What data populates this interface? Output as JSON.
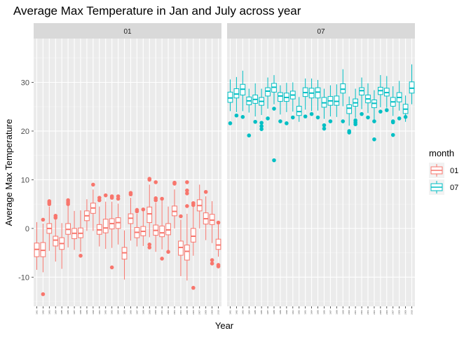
{
  "chart_data": {
    "type": "boxplot",
    "title": "Average Max Temperature in Jan and July across year",
    "xlabel": "Year",
    "ylabel": "Average Max Temperature",
    "ylim": [
      -16,
      39
    ],
    "yticks": [
      -10,
      0,
      10,
      20,
      30
    ],
    "grid": true,
    "facets": [
      "01",
      "07"
    ],
    "legend": {
      "title": "month",
      "position": "right",
      "entries": [
        {
          "label": "01",
          "color": "#F8766D"
        },
        {
          "label": "07",
          "color": "#00BFC4"
        }
      ]
    },
    "years": [
      "1981",
      "1982",
      "1983",
      "1984",
      "1985",
      "1986",
      "1987",
      "1988",
      "1989",
      "1990",
      "1991",
      "1992",
      "1993",
      "1994",
      "1995",
      "1996",
      "1997",
      "1998",
      "1999",
      "2000",
      "2001",
      "2002",
      "2003",
      "2004",
      "2005",
      "2006",
      "2007",
      "2008",
      "2009",
      "2010"
    ],
    "series": [
      {
        "facet": "01",
        "color": "#F8766D",
        "boxes": [
          {
            "year": "1981",
            "min": -8.5,
            "q1": -5.8,
            "median": -4.3,
            "q3": -3.0,
            "max": 1.3,
            "outliers": []
          },
          {
            "year": "1982",
            "min": -9.0,
            "q1": -5.8,
            "median": -4.5,
            "q3": -2.9,
            "max": 1.0,
            "outliers": [
              -13.5,
              1.8
            ]
          },
          {
            "year": "1983",
            "min": -4.6,
            "q1": -1.0,
            "median": 0.0,
            "q3": 1.0,
            "max": 4.5,
            "outliers": [
              5.0,
              5.3,
              5.6
            ]
          },
          {
            "year": "1984",
            "min": -6.8,
            "q1": -3.6,
            "median": -2.4,
            "q3": -1.6,
            "max": 1.8,
            "outliers": [
              2.2,
              2.6
            ]
          },
          {
            "year": "1985",
            "min": -8.3,
            "q1": -4.3,
            "median": -3.1,
            "q3": -1.9,
            "max": 1.1,
            "outliers": []
          },
          {
            "year": "1986",
            "min": -3.9,
            "q1": -1.2,
            "median": -0.2,
            "q3": 1.0,
            "max": 4.6,
            "outliers": [
              5.0,
              5.4,
              5.8
            ]
          },
          {
            "year": "1987",
            "min": -4.4,
            "q1": -2.1,
            "median": -1.0,
            "q3": 0.0,
            "max": 3.6,
            "outliers": []
          },
          {
            "year": "1988",
            "min": -4.8,
            "q1": -1.9,
            "median": -1.0,
            "q3": 0.1,
            "max": 3.7,
            "outliers": [
              -5.6
            ]
          },
          {
            "year": "1989",
            "min": -0.5,
            "q1": 1.6,
            "median": 2.6,
            "q3": 3.6,
            "max": 6.0,
            "outliers": []
          },
          {
            "year": "1990",
            "min": -0.5,
            "q1": 3.1,
            "median": 4.2,
            "q3": 5.2,
            "max": 8.0,
            "outliers": [
              9.0
            ]
          },
          {
            "year": "1991",
            "min": -3.7,
            "q1": -1.2,
            "median": -0.3,
            "q3": 0.8,
            "max": 4.5,
            "outliers": [
              5.8,
              6.3
            ]
          },
          {
            "year": "1992",
            "min": -4.2,
            "q1": -0.9,
            "median": 0.1,
            "q3": 1.9,
            "max": 5.5,
            "outliers": [
              6.8
            ]
          },
          {
            "year": "1993",
            "min": -4.0,
            "q1": -0.1,
            "median": 1.0,
            "q3": 2.0,
            "max": 5.5,
            "outliers": [
              -8.0,
              6.3,
              6.6
            ]
          },
          {
            "year": "1994",
            "min": -3.3,
            "q1": 0.0,
            "median": 1.2,
            "q3": 2.2,
            "max": 5.1,
            "outliers": [
              6.1,
              6.6
            ]
          },
          {
            "year": "1995",
            "min": -10.5,
            "q1": -6.3,
            "median": -5.0,
            "q3": -3.9,
            "max": -0.4,
            "outliers": []
          },
          {
            "year": "1996",
            "min": -2.5,
            "q1": 1.0,
            "median": 2.1,
            "q3": 3.0,
            "max": 6.3,
            "outliers": [
              7.0,
              7.3
            ]
          },
          {
            "year": "1997",
            "min": -3.7,
            "q1": -1.9,
            "median": -0.8,
            "q3": 0.2,
            "max": 3.0,
            "outliers": [
              3.5,
              3.8
            ]
          },
          {
            "year": "1998",
            "min": -3.6,
            "q1": -1.5,
            "median": -0.6,
            "q3": 0.4,
            "max": 3.5,
            "outliers": [
              3.9
            ]
          },
          {
            "year": "1999",
            "min": -1.8,
            "q1": 1.2,
            "median": 3.0,
            "q3": 4.4,
            "max": 9.0,
            "outliers": [
              -3.9,
              -3.3,
              10.2,
              10.0
            ]
          },
          {
            "year": "2000",
            "min": -4.8,
            "q1": -1.4,
            "median": -0.4,
            "q3": 0.7,
            "max": 5.3,
            "outliers": [
              5.8,
              6.2,
              9.5
            ]
          },
          {
            "year": "2001",
            "min": -4.3,
            "q1": -1.7,
            "median": -0.9,
            "q3": 0.5,
            "max": 5.7,
            "outliers": [
              -6.2,
              6.1
            ]
          },
          {
            "year": "2002",
            "min": -5.0,
            "q1": -1.3,
            "median": -0.3,
            "q3": 1.0,
            "max": 4.5,
            "outliers": [
              -4.8
            ]
          },
          {
            "year": "2003",
            "min": 0.0,
            "q1": 2.6,
            "median": 3.5,
            "q3": 4.6,
            "max": 8.0,
            "outliers": [
              9.2,
              9.4
            ]
          },
          {
            "year": "2004",
            "min": -9.8,
            "q1": -5.5,
            "median": -3.9,
            "q3": -2.6,
            "max": 1.8,
            "outliers": [
              2.5
            ]
          },
          {
            "year": "2005",
            "min": -10.7,
            "q1": -6.5,
            "median": -4.7,
            "q3": -3.4,
            "max": 3.0,
            "outliers": [
              4.6,
              7.2,
              7.8,
              9.5
            ]
          },
          {
            "year": "2006",
            "min": -5.6,
            "q1": -2.8,
            "median": -1.6,
            "q3": 0.0,
            "max": 4.4,
            "outliers": [
              -12.2,
              4.8,
              5.2
            ]
          },
          {
            "year": "2007",
            "min": 0.0,
            "q1": 3.6,
            "median": 4.7,
            "q3": 5.9,
            "max": 9.0,
            "outliers": []
          },
          {
            "year": "2008",
            "min": -2.4,
            "q1": 0.9,
            "median": 2.0,
            "q3": 3.2,
            "max": 6.6,
            "outliers": [
              7.5
            ]
          },
          {
            "year": "2009",
            "min": -3.0,
            "q1": 0.8,
            "median": 1.7,
            "q3": 2.9,
            "max": 5.6,
            "outliers": [
              -6.5,
              -7.2
            ]
          },
          {
            "year": "2010",
            "min": -5.8,
            "q1": -4.3,
            "median": -3.4,
            "q3": -2.2,
            "max": 0.8,
            "outliers": [
              1.2,
              -7.5,
              -7.8
            ]
          }
        ]
      },
      {
        "facet": "07",
        "color": "#00BFC4",
        "boxes": [
          {
            "year": "1981",
            "min": 24.1,
            "q1": 25.9,
            "median": 26.8,
            "q3": 28.0,
            "max": 30.6,
            "outliers": [
              21.6
            ]
          },
          {
            "year": "1982",
            "min": 23.9,
            "q1": 26.8,
            "median": 27.6,
            "q3": 28.7,
            "max": 31.1,
            "outliers": [
              23.2
            ]
          },
          {
            "year": "1983",
            "min": 24.1,
            "q1": 27.4,
            "median": 28.6,
            "q3": 29.6,
            "max": 32.4,
            "outliers": [
              22.9
            ]
          },
          {
            "year": "1984",
            "min": 23.8,
            "q1": 25.4,
            "median": 26.2,
            "q3": 27.0,
            "max": 28.7,
            "outliers": [
              19.1
            ]
          },
          {
            "year": "1985",
            "min": 23.0,
            "q1": 25.7,
            "median": 26.5,
            "q3": 27.4,
            "max": 29.8,
            "outliers": [
              21.9
            ]
          },
          {
            "year": "1986",
            "min": 23.3,
            "q1": 25.3,
            "median": 26.1,
            "q3": 26.9,
            "max": 28.7,
            "outliers": [
              21.7,
              21.0,
              20.4
            ]
          },
          {
            "year": "1987",
            "min": 24.6,
            "q1": 27.2,
            "median": 28.2,
            "q3": 28.9,
            "max": 31.0,
            "outliers": [
              22.6
            ]
          },
          {
            "year": "1988",
            "min": 25.5,
            "q1": 28.0,
            "median": 29.0,
            "q3": 29.8,
            "max": 31.5,
            "outliers": [
              24.6,
              14.0
            ]
          },
          {
            "year": "1989",
            "min": 23.4,
            "q1": 26.1,
            "median": 27.2,
            "q3": 27.9,
            "max": 29.4,
            "outliers": [
              22.0
            ]
          },
          {
            "year": "1990",
            "min": 23.9,
            "q1": 26.1,
            "median": 26.9,
            "q3": 27.8,
            "max": 29.9,
            "outliers": [
              21.6
            ]
          },
          {
            "year": "1991",
            "min": 24.0,
            "q1": 26.6,
            "median": 27.4,
            "q3": 28.2,
            "max": 30.0,
            "outliers": [
              22.8
            ]
          },
          {
            "year": "1992",
            "min": 21.9,
            "q1": 23.2,
            "median": 24.0,
            "q3": 25.1,
            "max": 27.0,
            "outliers": []
          },
          {
            "year": "1993",
            "min": 24.4,
            "q1": 27.1,
            "median": 27.9,
            "q3": 28.9,
            "max": 30.8,
            "outliers": [
              23.0
            ]
          },
          {
            "year": "1994",
            "min": 24.1,
            "q1": 26.8,
            "median": 27.8,
            "q3": 28.8,
            "max": 30.8,
            "outliers": [
              23.5
            ]
          },
          {
            "year": "1995",
            "min": 24.2,
            "q1": 26.8,
            "median": 28.0,
            "q3": 28.9,
            "max": 30.5,
            "outliers": [
              22.8
            ]
          },
          {
            "year": "1996",
            "min": 22.5,
            "q1": 24.9,
            "median": 25.8,
            "q3": 26.9,
            "max": 28.7,
            "outliers": [
              21.2,
              20.5
            ]
          },
          {
            "year": "1997",
            "min": 23.0,
            "q1": 25.3,
            "median": 26.2,
            "q3": 27.1,
            "max": 29.4,
            "outliers": [
              22.0
            ]
          },
          {
            "year": "1998",
            "min": 22.9,
            "q1": 25.3,
            "median": 26.1,
            "q3": 27.2,
            "max": 29.6,
            "outliers": []
          },
          {
            "year": "1999",
            "min": 25.1,
            "q1": 27.8,
            "median": 28.6,
            "q3": 29.7,
            "max": 32.7,
            "outliers": [
              22.0
            ]
          },
          {
            "year": "2000",
            "min": 21.1,
            "q1": 23.6,
            "median": 24.7,
            "q3": 25.4,
            "max": 27.1,
            "outliers": [
              20.0,
              19.7
            ]
          },
          {
            "year": "2001",
            "min": 22.7,
            "q1": 25.1,
            "median": 25.8,
            "q3": 26.6,
            "max": 28.7,
            "outliers": [
              22.2,
              21.8,
              21.4
            ]
          },
          {
            "year": "2002",
            "min": 24.5,
            "q1": 27.4,
            "median": 28.3,
            "q3": 28.9,
            "max": 31.0,
            "outliers": [
              23.5
            ]
          },
          {
            "year": "2003",
            "min": 23.7,
            "q1": 25.8,
            "median": 26.6,
            "q3": 27.4,
            "max": 29.8,
            "outliers": [
              22.8
            ]
          },
          {
            "year": "2004",
            "min": 22.3,
            "q1": 24.8,
            "median": 25.7,
            "q3": 26.4,
            "max": 28.4,
            "outliers": [
              18.3,
              22.0
            ]
          },
          {
            "year": "2005",
            "min": 24.9,
            "q1": 27.5,
            "median": 28.3,
            "q3": 29.0,
            "max": 31.5,
            "outliers": [
              24.0
            ]
          },
          {
            "year": "2006",
            "min": 24.8,
            "q1": 27.2,
            "median": 27.9,
            "q3": 28.8,
            "max": 31.3,
            "outliers": [
              24.3
            ]
          },
          {
            "year": "2007",
            "min": 23.1,
            "q1": 25.1,
            "median": 26.0,
            "q3": 26.9,
            "max": 29.2,
            "outliers": [
              21.8,
              19.2,
              22.0
            ]
          },
          {
            "year": "2008",
            "min": 24.2,
            "q1": 26.0,
            "median": 26.9,
            "q3": 27.9,
            "max": 30.3,
            "outliers": [
              22.6
            ]
          },
          {
            "year": "2009",
            "min": 21.9,
            "q1": 23.6,
            "median": 24.5,
            "q3": 25.5,
            "max": 27.3,
            "outliers": [
              22.9
            ]
          },
          {
            "year": "2010",
            "min": 25.5,
            "q1": 27.8,
            "median": 28.8,
            "q3": 30.1,
            "max": 33.7,
            "outliers": []
          }
        ]
      }
    ]
  }
}
